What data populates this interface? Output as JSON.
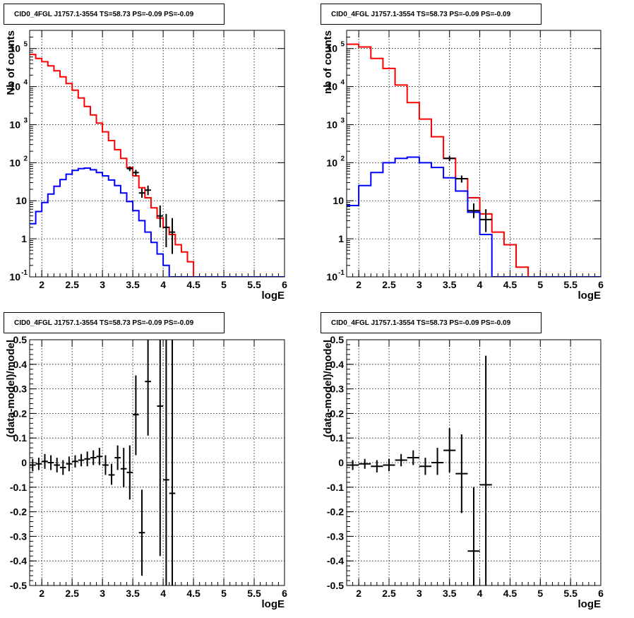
{
  "chart_data": [
    {
      "type": "step-histogram",
      "title": "CID0_4FGL J1757.1-3554 TS=58.73 PS=-0.09 PS=-0.09",
      "xlabel": "logE",
      "ylabel": "Nb of counts",
      "yscale": "log",
      "xlim": [
        1.8,
        6.0
      ],
      "ylim": [
        0.1,
        300000
      ],
      "grid": true,
      "xticks": [
        "2",
        "2.5",
        "3",
        "3.5",
        "4",
        "4.5",
        "5",
        "5.5",
        "6"
      ],
      "yticks": [
        {
          "value": 0.1,
          "base": "10",
          "exp": "-1"
        },
        {
          "value": 1,
          "base": "1",
          "exp": ""
        },
        {
          "value": 10,
          "base": "10",
          "exp": ""
        },
        {
          "value": 100,
          "base": "10",
          "exp": "2"
        },
        {
          "value": 1000,
          "base": "10",
          "exp": "3"
        },
        {
          "value": 10000,
          "base": "10",
          "exp": "4"
        },
        {
          "value": 100000,
          "base": "10",
          "exp": "5"
        }
      ],
      "bin_edges": [
        1.8,
        1.9,
        2.0,
        2.1,
        2.2,
        2.3,
        2.4,
        2.5,
        2.6,
        2.7,
        2.8,
        2.9,
        3.0,
        3.1,
        3.2,
        3.3,
        3.4,
        3.5,
        3.6,
        3.7,
        3.8,
        3.9,
        4.0,
        4.1,
        4.2,
        4.3,
        4.4,
        4.5,
        4.6,
        4.7,
        4.8,
        4.9,
        5.0,
        5.1,
        5.2,
        5.3,
        5.4,
        5.5,
        5.6,
        5.7,
        5.8,
        5.9,
        6.0
      ],
      "series": [
        {
          "color": "#ff0000",
          "values": [
            70000,
            55000,
            45000,
            35000,
            26000,
            18000,
            12000,
            8000,
            5000,
            3000,
            1800,
            1100,
            650,
            380,
            220,
            130,
            75,
            45,
            22,
            12,
            6.5,
            3.5,
            2,
            1.3,
            0.7,
            0.45,
            0.25,
            0.1,
            0.1,
            0.1,
            0.1,
            0.1,
            0.1,
            0.1,
            0.1,
            0.1,
            0.1,
            0.1,
            0.1,
            0.1,
            0.1,
            0.1
          ]
        },
        {
          "color": "#0000ff",
          "values": [
            2.5,
            5.2,
            9,
            15,
            24,
            36,
            50,
            63,
            70,
            72,
            65,
            55,
            45,
            35,
            25,
            16,
            9.5,
            5.5,
            3,
            1.5,
            0.8,
            0.4,
            0.2,
            0.1,
            0.1,
            0.1,
            0.1,
            0.1,
            0.1,
            0.1,
            0.1,
            0.1,
            0.1,
            0.1,
            0.1,
            0.1,
            0.1,
            0.1,
            0.1,
            0.1,
            0.1,
            0.1
          ]
        }
      ],
      "points": [
        {
          "x": 3.45,
          "y": 70,
          "lo": 60,
          "hi": 80,
          "xerr": 0.05
        },
        {
          "x": 3.55,
          "y": 55,
          "lo": 45,
          "hi": 65,
          "xerr": 0.05
        },
        {
          "x": 3.65,
          "y": 16,
          "lo": 12,
          "hi": 21,
          "xerr": 0.05
        },
        {
          "x": 3.75,
          "y": 19,
          "lo": 14,
          "hi": 25,
          "xerr": 0.05
        },
        {
          "x": 3.95,
          "y": 4.0,
          "lo": 2.0,
          "hi": 7.5,
          "xerr": 0.05
        },
        {
          "x": 4.05,
          "y": 2.0,
          "lo": 0.6,
          "hi": 4.5,
          "xerr": 0.05
        },
        {
          "x": 4.15,
          "y": 1.5,
          "lo": 0.4,
          "hi": 3.5,
          "xerr": 0.05
        }
      ]
    },
    {
      "type": "step-histogram",
      "title": "CID0_4FGL J1757.1-3554 TS=58.73 PS=-0.09 PS=-0.09",
      "xlabel": "logE",
      "ylabel": "nb of counts",
      "yscale": "log",
      "xlim": [
        1.8,
        6.0
      ],
      "ylim": [
        0.1,
        300000
      ],
      "grid": true,
      "xticks": [
        "2",
        "2.5",
        "3",
        "3.5",
        "4",
        "4.5",
        "5",
        "5.5",
        "6"
      ],
      "yticks": [
        {
          "value": 0.1,
          "base": "10",
          "exp": "-1"
        },
        {
          "value": 1,
          "base": "1",
          "exp": ""
        },
        {
          "value": 10,
          "base": "10",
          "exp": ""
        },
        {
          "value": 100,
          "base": "10",
          "exp": "2"
        },
        {
          "value": 1000,
          "base": "10",
          "exp": "3"
        },
        {
          "value": 10000,
          "base": "10",
          "exp": "4"
        },
        {
          "value": 100000,
          "base": "10",
          "exp": "5"
        }
      ],
      "bin_edges": [
        1.8,
        2.0,
        2.2,
        2.4,
        2.6,
        2.8,
        3.0,
        3.2,
        3.4,
        3.6,
        3.8,
        4.0,
        4.2,
        4.4,
        4.6,
        4.8,
        5.0,
        5.2,
        5.4,
        5.6,
        5.8,
        6.0
      ],
      "series": [
        {
          "color": "#ff0000",
          "values": [
            130000,
            110000,
            55000,
            30000,
            11000,
            3800,
            1400,
            480,
            130,
            38,
            12,
            4.5,
            1.5,
            0.7,
            0.18,
            0.1,
            0.1,
            0.1,
            0.1,
            0.1,
            0.1
          ]
        },
        {
          "color": "#0000ff",
          "values": [
            7.5,
            25,
            55,
            100,
            130,
            140,
            100,
            75,
            40,
            18,
            5,
            1.3,
            0.1,
            0.1,
            0.1,
            0.1,
            0.1,
            0.1,
            0.1,
            0.1,
            0.1
          ]
        }
      ],
      "points": [
        {
          "x": 3.5,
          "y": 130,
          "lo": 110,
          "hi": 150,
          "xerr": 0.1
        },
        {
          "x": 3.7,
          "y": 38,
          "lo": 30,
          "hi": 46,
          "xerr": 0.1
        },
        {
          "x": 3.9,
          "y": 5.5,
          "lo": 3.5,
          "hi": 8.5,
          "xerr": 0.1
        },
        {
          "x": 4.1,
          "y": 3.2,
          "lo": 1.5,
          "hi": 6.0,
          "xerr": 0.1
        }
      ]
    },
    {
      "type": "error-bars",
      "title": "CID0_4FGL J1757.1-3554 TS=58.73 PS=-0.09 PS=-0.09",
      "xlabel": "logE",
      "ylabel": "(data-model)/model",
      "yscale": "linear",
      "xlim": [
        1.8,
        6.0
      ],
      "ylim": [
        -0.5,
        0.5
      ],
      "grid": true,
      "xticks": [
        "2",
        "2.5",
        "3",
        "3.5",
        "4",
        "4.5",
        "5",
        "5.5",
        "6"
      ],
      "yticks": [
        "-0.5",
        "-0.4",
        "-0.3",
        "-0.2",
        "-0.1",
        "0",
        "0.1",
        "0.2",
        "0.3",
        "0.4",
        "0.5"
      ],
      "points": [
        {
          "x": 1.85,
          "y": -0.01,
          "lo": -0.035,
          "hi": 0.015,
          "xerr": 0.05
        },
        {
          "x": 1.95,
          "y": -0.005,
          "lo": -0.03,
          "hi": 0.02,
          "xerr": 0.05
        },
        {
          "x": 2.05,
          "y": 0.005,
          "lo": -0.025,
          "hi": 0.035,
          "xerr": 0.05
        },
        {
          "x": 2.15,
          "y": 0.0,
          "lo": -0.03,
          "hi": 0.03,
          "xerr": 0.05
        },
        {
          "x": 2.25,
          "y": -0.01,
          "lo": -0.04,
          "hi": 0.02,
          "xerr": 0.05
        },
        {
          "x": 2.35,
          "y": -0.02,
          "lo": -0.05,
          "hi": 0.01,
          "xerr": 0.05
        },
        {
          "x": 2.45,
          "y": -0.005,
          "lo": -0.035,
          "hi": 0.025,
          "xerr": 0.05
        },
        {
          "x": 2.55,
          "y": 0.005,
          "lo": -0.02,
          "hi": 0.03,
          "xerr": 0.05
        },
        {
          "x": 2.65,
          "y": 0.01,
          "lo": -0.015,
          "hi": 0.035,
          "xerr": 0.05
        },
        {
          "x": 2.75,
          "y": 0.015,
          "lo": -0.015,
          "hi": 0.045,
          "xerr": 0.05
        },
        {
          "x": 2.85,
          "y": 0.02,
          "lo": -0.01,
          "hi": 0.05,
          "xerr": 0.05
        },
        {
          "x": 2.95,
          "y": 0.025,
          "lo": -0.01,
          "hi": 0.06,
          "xerr": 0.05
        },
        {
          "x": 3.05,
          "y": -0.01,
          "lo": -0.05,
          "hi": 0.03,
          "xerr": 0.05
        },
        {
          "x": 3.15,
          "y": -0.05,
          "lo": -0.09,
          "hi": -0.005,
          "xerr": 0.05
        },
        {
          "x": 3.25,
          "y": 0.02,
          "lo": -0.03,
          "hi": 0.07,
          "xerr": 0.05
        },
        {
          "x": 3.35,
          "y": -0.025,
          "lo": -0.1,
          "hi": 0.06,
          "xerr": 0.05
        },
        {
          "x": 3.45,
          "y": -0.04,
          "lo": -0.15,
          "hi": 0.07,
          "xerr": 0.05
        },
        {
          "x": 3.55,
          "y": 0.195,
          "lo": 0.03,
          "hi": 0.355,
          "xerr": 0.05
        },
        {
          "x": 3.65,
          "y": -0.285,
          "lo": -0.46,
          "hi": -0.11,
          "xerr": 0.05
        },
        {
          "x": 3.75,
          "y": 0.33,
          "lo": 0.11,
          "hi": 0.5,
          "xerr": 0.05
        },
        {
          "x": 3.95,
          "y": 0.23,
          "lo": -0.38,
          "hi": 0.5,
          "xerr": 0.05
        },
        {
          "x": 4.05,
          "y": -0.07,
          "lo": -0.5,
          "hi": 0.5,
          "xerr": 0.05
        },
        {
          "x": 4.15,
          "y": -0.125,
          "lo": -0.5,
          "hi": 0.5,
          "xerr": 0.05
        }
      ]
    },
    {
      "type": "error-bars",
      "title": "CID0_4FGL J1757.1-3554 TS=58.73 PS=-0.09 PS=-0.09",
      "xlabel": "logE",
      "ylabel": "(data-model)/model",
      "yscale": "linear",
      "xlim": [
        1.8,
        6.0
      ],
      "ylim": [
        -0.5,
        0.5
      ],
      "grid": true,
      "xticks": [
        "2",
        "2.5",
        "3",
        "3.5",
        "4",
        "4.5",
        "5",
        "5.5",
        "6"
      ],
      "yticks": [
        "-0.5",
        "-0.4",
        "-0.3",
        "-0.2",
        "-0.1",
        "0",
        "0.1",
        "0.2",
        "0.3",
        "0.4",
        "0.5"
      ],
      "points": [
        {
          "x": 1.9,
          "y": -0.01,
          "lo": -0.03,
          "hi": 0.01,
          "xerr": 0.1
        },
        {
          "x": 2.1,
          "y": -0.005,
          "lo": -0.025,
          "hi": 0.015,
          "xerr": 0.1
        },
        {
          "x": 2.3,
          "y": -0.015,
          "lo": -0.04,
          "hi": 0.01,
          "xerr": 0.1
        },
        {
          "x": 2.5,
          "y": -0.01,
          "lo": -0.035,
          "hi": 0.015,
          "xerr": 0.1
        },
        {
          "x": 2.7,
          "y": 0.01,
          "lo": -0.015,
          "hi": 0.035,
          "xerr": 0.1
        },
        {
          "x": 2.9,
          "y": 0.02,
          "lo": -0.01,
          "hi": 0.05,
          "xerr": 0.1
        },
        {
          "x": 3.1,
          "y": -0.015,
          "lo": -0.05,
          "hi": 0.02,
          "xerr": 0.1
        },
        {
          "x": 3.3,
          "y": 0.0,
          "lo": -0.05,
          "hi": 0.06,
          "xerr": 0.1
        },
        {
          "x": 3.5,
          "y": 0.05,
          "lo": -0.04,
          "hi": 0.14,
          "xerr": 0.1
        },
        {
          "x": 3.7,
          "y": -0.045,
          "lo": -0.205,
          "hi": 0.115,
          "xerr": 0.1
        },
        {
          "x": 3.9,
          "y": -0.36,
          "lo": -0.5,
          "hi": -0.1,
          "xerr": 0.1
        },
        {
          "x": 4.1,
          "y": -0.09,
          "lo": -0.5,
          "hi": 0.435,
          "xerr": 0.1
        }
      ]
    }
  ]
}
